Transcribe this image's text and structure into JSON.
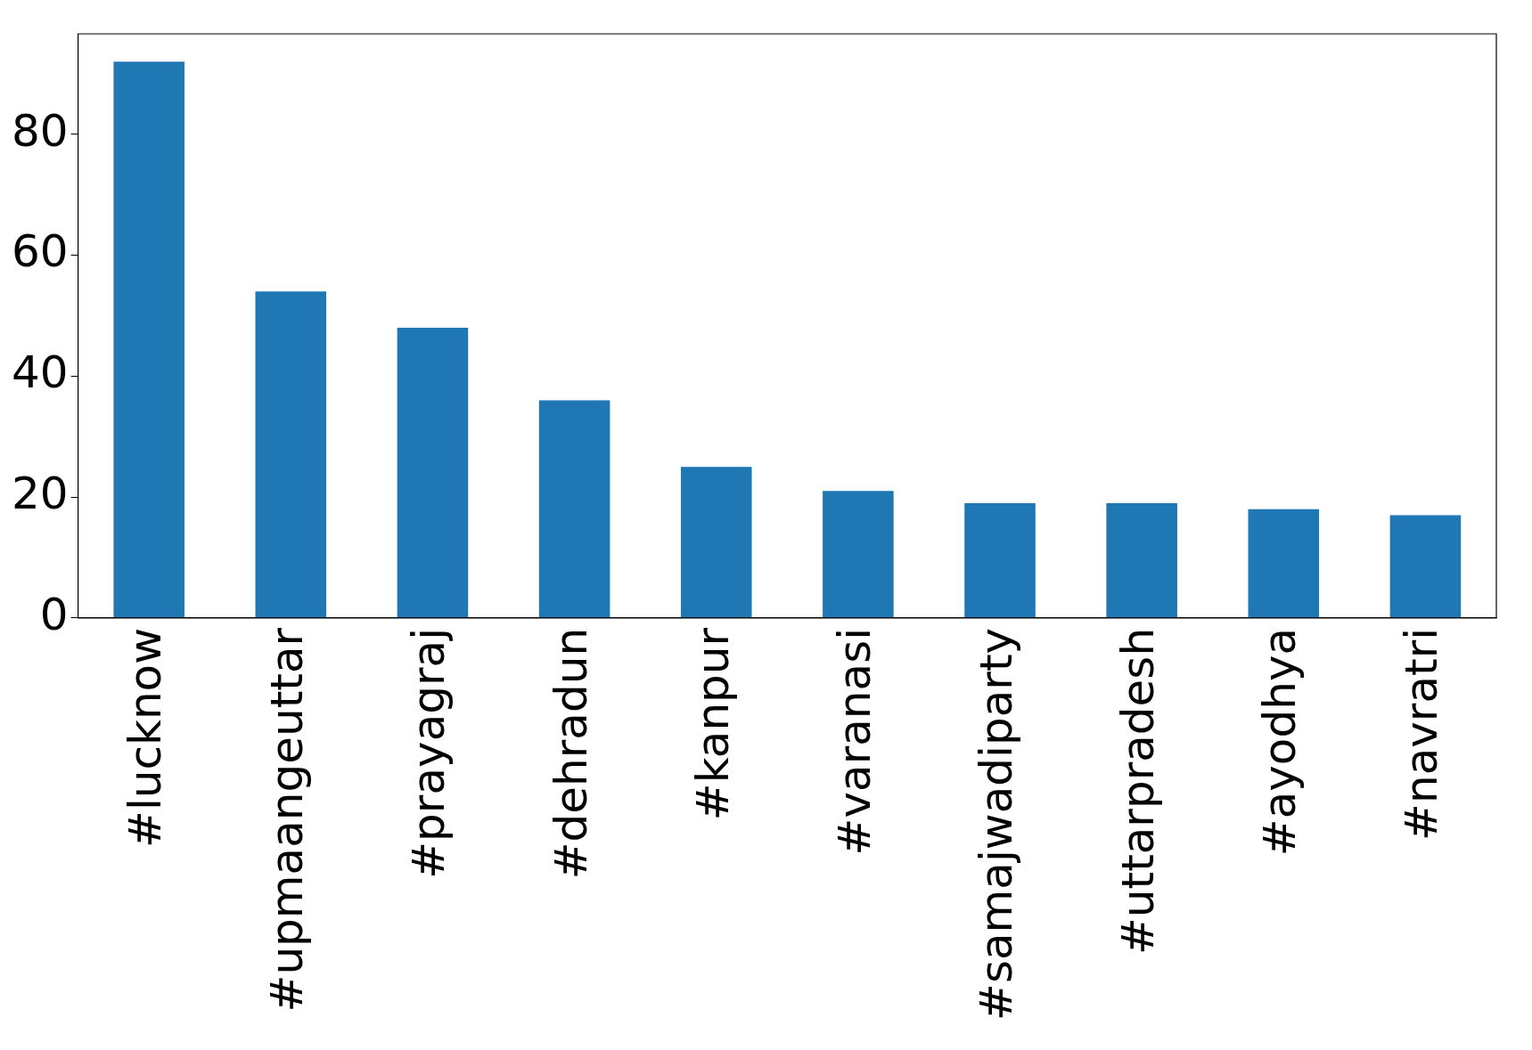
{
  "chart_data": {
    "type": "bar",
    "categories": [
      "#lucknow",
      "#upmaangeuttar",
      "#prayagraj",
      "#dehradun",
      "#kanpur",
      "#varanasi",
      "#samajwadiparty",
      "#uttarpradesh",
      "#ayodhya",
      "#navratri"
    ],
    "values": [
      92,
      54,
      48,
      36,
      25,
      21,
      19,
      19,
      18,
      17
    ],
    "color": "#1f77b4",
    "ylim": [
      0,
      96.6
    ],
    "yticks": [
      0,
      20,
      40,
      60,
      80
    ],
    "grid": false,
    "legend": false
  }
}
